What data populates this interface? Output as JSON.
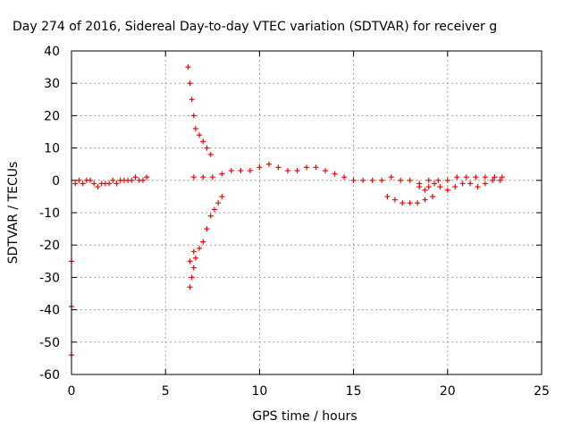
{
  "chart_data": {
    "type": "scatter",
    "title": "Day 274 of 2016, Sidereal Day-to-day VTEC variation (SDTVAR) for receiver g",
    "xlabel": "GPS time / hours",
    "ylabel": "SDTVAR / TECUs",
    "xlim": [
      0,
      25
    ],
    "ylim": [
      -60,
      40
    ],
    "xticks": [
      0,
      5,
      10,
      15,
      20,
      25
    ],
    "yticks": [
      -60,
      -50,
      -40,
      -30,
      -20,
      -10,
      0,
      10,
      20,
      30,
      40
    ],
    "grid": true,
    "legend": "none",
    "marker": "plus",
    "series": [
      {
        "color": "#ff0000",
        "points": [
          [
            0.0,
            -25
          ],
          [
            0.0,
            -39
          ],
          [
            0.0,
            -54
          ],
          [
            0.2,
            -1
          ],
          [
            0.4,
            0
          ],
          [
            0.6,
            -1
          ],
          [
            0.8,
            0
          ],
          [
            1.0,
            0
          ],
          [
            1.2,
            -1
          ],
          [
            1.4,
            -2
          ],
          [
            1.6,
            -1
          ],
          [
            1.8,
            -1
          ],
          [
            2.0,
            -1
          ],
          [
            2.2,
            0
          ],
          [
            2.4,
            -1
          ],
          [
            2.6,
            0
          ],
          [
            2.8,
            0
          ],
          [
            3.0,
            0
          ],
          [
            3.2,
            0
          ],
          [
            3.4,
            1
          ],
          [
            3.6,
            0
          ],
          [
            3.8,
            0
          ],
          [
            4.0,
            1
          ],
          [
            6.2,
            35
          ],
          [
            6.3,
            30
          ],
          [
            6.4,
            25
          ],
          [
            6.5,
            20
          ],
          [
            6.6,
            16
          ],
          [
            6.8,
            14
          ],
          [
            7.0,
            12
          ],
          [
            7.2,
            10
          ],
          [
            7.4,
            8
          ],
          [
            6.3,
            -33
          ],
          [
            6.4,
            -30
          ],
          [
            6.5,
            -27
          ],
          [
            6.6,
            -24
          ],
          [
            6.8,
            -21
          ],
          [
            7.0,
            -19
          ],
          [
            7.2,
            -15
          ],
          [
            7.4,
            -11
          ],
          [
            7.6,
            -9
          ],
          [
            7.8,
            -7
          ],
          [
            8.0,
            -5
          ],
          [
            6.3,
            -25
          ],
          [
            6.5,
            -22
          ],
          [
            6.5,
            1
          ],
          [
            7.0,
            1
          ],
          [
            7.5,
            1
          ],
          [
            8.0,
            2
          ],
          [
            8.5,
            3
          ],
          [
            9.0,
            3
          ],
          [
            9.5,
            3
          ],
          [
            10.0,
            4
          ],
          [
            10.5,
            5
          ],
          [
            11.0,
            4
          ],
          [
            11.5,
            3
          ],
          [
            12.0,
            3
          ],
          [
            12.5,
            4
          ],
          [
            13.0,
            4
          ],
          [
            13.5,
            3
          ],
          [
            14.0,
            2
          ],
          [
            14.5,
            1
          ],
          [
            15.0,
            0
          ],
          [
            15.5,
            0
          ],
          [
            16.0,
            0
          ],
          [
            16.5,
            0
          ],
          [
            17.0,
            1
          ],
          [
            17.5,
            0
          ],
          [
            18.0,
            0
          ],
          [
            18.5,
            -1
          ],
          [
            19.0,
            0
          ],
          [
            19.5,
            0
          ],
          [
            20.0,
            0
          ],
          [
            20.5,
            1
          ],
          [
            21.0,
            1
          ],
          [
            21.5,
            1
          ],
          [
            22.0,
            1
          ],
          [
            22.5,
            1
          ],
          [
            22.9,
            1
          ],
          [
            16.8,
            -5
          ],
          [
            17.2,
            -6
          ],
          [
            17.6,
            -7
          ],
          [
            18.0,
            -7
          ],
          [
            18.4,
            -7
          ],
          [
            18.8,
            -6
          ],
          [
            19.2,
            -5
          ],
          [
            18.5,
            -2
          ],
          [
            18.8,
            -3
          ],
          [
            19.0,
            -2
          ],
          [
            19.3,
            -1
          ],
          [
            19.6,
            -2
          ],
          [
            20.0,
            -3
          ],
          [
            20.4,
            -2
          ],
          [
            20.8,
            -1
          ],
          [
            21.2,
            -1
          ],
          [
            21.6,
            -2
          ],
          [
            22.0,
            -1
          ],
          [
            22.4,
            0
          ],
          [
            22.8,
            0
          ]
        ]
      }
    ]
  }
}
